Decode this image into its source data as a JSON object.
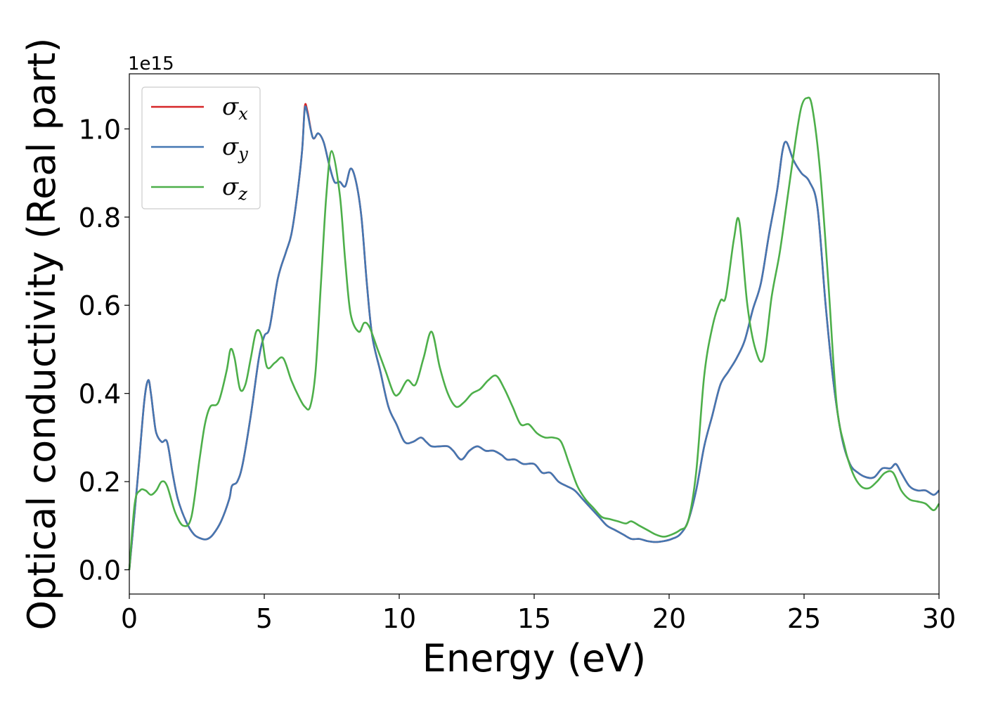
{
  "chart_data": {
    "type": "line",
    "title": "",
    "xlabel": "Energy (eV)",
    "ylabel": "Optical conductivity (Real part)",
    "y_offset_label": "1e15",
    "xlim": [
      0,
      30
    ],
    "ylim": [
      -0.055,
      1.125
    ],
    "xticks": [
      0,
      5,
      10,
      15,
      20,
      25,
      30
    ],
    "xtick_labels": [
      "0",
      "5",
      "10",
      "15",
      "20",
      "25",
      "30"
    ],
    "yticks": [
      0.0,
      0.2,
      0.4,
      0.6,
      0.8,
      1.0
    ],
    "ytick_labels": [
      "0.0",
      "0.2",
      "0.4",
      "0.6",
      "0.8",
      "1.0"
    ],
    "grid": false,
    "legend_position": "top-left",
    "series": [
      {
        "name": "σx",
        "legend_symbol": "σ",
        "legend_sub": "x",
        "color": "#d62728",
        "x": [
          0,
          0.3,
          0.55,
          0.7,
          0.8,
          0.9,
          1.0,
          1.2,
          1.4,
          1.6,
          1.8,
          2.1,
          2.4,
          2.7,
          2.9,
          3.1,
          3.4,
          3.7,
          3.8,
          4.0,
          4.2,
          4.5,
          4.8,
          5.0,
          5.2,
          5.5,
          5.8,
          6.0,
          6.2,
          6.4,
          6.5,
          6.6,
          6.8,
          7.0,
          7.2,
          7.4,
          7.6,
          7.8,
          8.0,
          8.2,
          8.4,
          8.6,
          8.8,
          9.0,
          9.3,
          9.6,
          9.9,
          10.2,
          10.5,
          10.8,
          11.0,
          11.2,
          11.5,
          11.8,
          12.0,
          12.3,
          12.6,
          12.9,
          13.2,
          13.5,
          13.8,
          14.0,
          14.3,
          14.6,
          15.0,
          15.3,
          15.6,
          15.9,
          16.2,
          16.5,
          16.8,
          17.1,
          17.4,
          17.7,
          18.0,
          18.3,
          18.6,
          18.9,
          19.2,
          19.5,
          19.8,
          20.1,
          20.4,
          20.7,
          21.0,
          21.3,
          21.6,
          21.9,
          22.2,
          22.5,
          22.8,
          23.1,
          23.4,
          23.7,
          24.0,
          24.2,
          24.35,
          24.6,
          24.9,
          25.2,
          25.5,
          25.8,
          26.1,
          26.4,
          26.7,
          27.0,
          27.3,
          27.6,
          27.9,
          28.2,
          28.4,
          28.6,
          28.9,
          29.2,
          29.5,
          29.8,
          30.0
        ],
        "y": [
          0.0,
          0.2,
          0.38,
          0.43,
          0.4,
          0.35,
          0.31,
          0.29,
          0.29,
          0.22,
          0.16,
          0.11,
          0.08,
          0.07,
          0.07,
          0.08,
          0.11,
          0.16,
          0.19,
          0.2,
          0.24,
          0.35,
          0.48,
          0.53,
          0.55,
          0.66,
          0.72,
          0.76,
          0.84,
          0.95,
          1.05,
          1.04,
          0.98,
          0.99,
          0.97,
          0.92,
          0.88,
          0.88,
          0.87,
          0.91,
          0.88,
          0.8,
          0.65,
          0.53,
          0.45,
          0.37,
          0.33,
          0.29,
          0.29,
          0.3,
          0.29,
          0.28,
          0.28,
          0.28,
          0.27,
          0.25,
          0.27,
          0.28,
          0.27,
          0.27,
          0.26,
          0.25,
          0.25,
          0.24,
          0.24,
          0.22,
          0.22,
          0.2,
          0.19,
          0.18,
          0.16,
          0.14,
          0.12,
          0.1,
          0.09,
          0.08,
          0.07,
          0.07,
          0.065,
          0.063,
          0.065,
          0.07,
          0.08,
          0.11,
          0.18,
          0.28,
          0.35,
          0.42,
          0.45,
          0.48,
          0.52,
          0.59,
          0.65,
          0.76,
          0.86,
          0.95,
          0.97,
          0.93,
          0.9,
          0.88,
          0.82,
          0.6,
          0.42,
          0.3,
          0.24,
          0.22,
          0.21,
          0.21,
          0.23,
          0.23,
          0.24,
          0.22,
          0.19,
          0.18,
          0.18,
          0.17,
          0.18
        ]
      },
      {
        "name": "σy",
        "legend_symbol": "σ",
        "legend_sub": "y",
        "color": "#4477b2",
        "x": [
          0,
          0.3,
          0.55,
          0.7,
          0.8,
          0.9,
          1.0,
          1.2,
          1.4,
          1.6,
          1.8,
          2.1,
          2.4,
          2.7,
          2.9,
          3.1,
          3.4,
          3.7,
          3.8,
          4.0,
          4.2,
          4.5,
          4.8,
          5.0,
          5.2,
          5.5,
          5.8,
          6.0,
          6.2,
          6.4,
          6.5,
          6.6,
          6.8,
          7.0,
          7.2,
          7.4,
          7.6,
          7.8,
          8.0,
          8.2,
          8.4,
          8.6,
          8.8,
          9.0,
          9.3,
          9.6,
          9.9,
          10.2,
          10.5,
          10.8,
          11.0,
          11.2,
          11.5,
          11.8,
          12.0,
          12.3,
          12.6,
          12.9,
          13.2,
          13.5,
          13.8,
          14.0,
          14.3,
          14.6,
          15.0,
          15.3,
          15.6,
          15.9,
          16.2,
          16.5,
          16.8,
          17.1,
          17.4,
          17.7,
          18.0,
          18.3,
          18.6,
          18.9,
          19.2,
          19.5,
          19.8,
          20.1,
          20.4,
          20.7,
          21.0,
          21.3,
          21.6,
          21.9,
          22.2,
          22.5,
          22.8,
          23.1,
          23.4,
          23.7,
          24.0,
          24.2,
          24.35,
          24.6,
          24.9,
          25.2,
          25.5,
          25.8,
          26.1,
          26.4,
          26.7,
          27.0,
          27.3,
          27.6,
          27.9,
          28.2,
          28.4,
          28.6,
          28.9,
          29.2,
          29.5,
          29.8,
          30.0
        ],
        "y": [
          0.0,
          0.2,
          0.38,
          0.43,
          0.4,
          0.35,
          0.31,
          0.29,
          0.29,
          0.22,
          0.16,
          0.11,
          0.08,
          0.07,
          0.07,
          0.08,
          0.11,
          0.16,
          0.19,
          0.2,
          0.24,
          0.35,
          0.48,
          0.53,
          0.55,
          0.66,
          0.72,
          0.76,
          0.84,
          0.95,
          1.045,
          1.035,
          0.98,
          0.99,
          0.97,
          0.92,
          0.88,
          0.88,
          0.87,
          0.91,
          0.88,
          0.8,
          0.65,
          0.53,
          0.45,
          0.37,
          0.33,
          0.29,
          0.29,
          0.3,
          0.29,
          0.28,
          0.28,
          0.28,
          0.27,
          0.25,
          0.27,
          0.28,
          0.27,
          0.27,
          0.26,
          0.25,
          0.25,
          0.24,
          0.24,
          0.22,
          0.22,
          0.2,
          0.19,
          0.18,
          0.16,
          0.14,
          0.12,
          0.1,
          0.09,
          0.08,
          0.07,
          0.07,
          0.065,
          0.063,
          0.065,
          0.07,
          0.08,
          0.11,
          0.18,
          0.28,
          0.35,
          0.42,
          0.45,
          0.48,
          0.52,
          0.59,
          0.65,
          0.76,
          0.86,
          0.95,
          0.97,
          0.93,
          0.9,
          0.88,
          0.82,
          0.6,
          0.42,
          0.3,
          0.24,
          0.22,
          0.21,
          0.21,
          0.23,
          0.23,
          0.24,
          0.22,
          0.19,
          0.18,
          0.18,
          0.17,
          0.18
        ]
      },
      {
        "name": "σz",
        "legend_symbol": "σ",
        "legend_sub": "z",
        "color": "#4daf4a",
        "x": [
          0,
          0.2,
          0.4,
          0.6,
          0.8,
          1.0,
          1.2,
          1.4,
          1.7,
          2.0,
          2.3,
          2.6,
          2.8,
          3.0,
          3.3,
          3.6,
          3.75,
          3.9,
          4.1,
          4.3,
          4.5,
          4.7,
          4.9,
          5.1,
          5.4,
          5.7,
          6.0,
          6.3,
          6.5,
          6.7,
          6.9,
          7.1,
          7.3,
          7.5,
          7.8,
          8.0,
          8.2,
          8.5,
          8.7,
          8.9,
          9.2,
          9.5,
          9.8,
          10.0,
          10.3,
          10.6,
          10.9,
          11.2,
          11.5,
          11.8,
          12.1,
          12.4,
          12.7,
          13.0,
          13.3,
          13.6,
          13.9,
          14.2,
          14.5,
          14.8,
          15.1,
          15.4,
          15.7,
          16.0,
          16.3,
          16.6,
          16.9,
          17.2,
          17.5,
          17.8,
          18.1,
          18.4,
          18.6,
          18.9,
          19.2,
          19.5,
          19.8,
          20.1,
          20.4,
          20.7,
          21.0,
          21.3,
          21.6,
          21.9,
          22.1,
          22.4,
          22.6,
          22.9,
          23.2,
          23.5,
          23.8,
          24.1,
          24.4,
          24.7,
          24.9,
          25.1,
          25.3,
          25.6,
          25.9,
          26.2,
          26.5,
          26.8,
          27.1,
          27.4,
          27.7,
          28.0,
          28.3,
          28.6,
          28.9,
          29.2,
          29.5,
          29.8,
          30.0
        ],
        "y": [
          0.0,
          0.15,
          0.18,
          0.18,
          0.17,
          0.18,
          0.2,
          0.19,
          0.13,
          0.1,
          0.12,
          0.25,
          0.33,
          0.37,
          0.38,
          0.45,
          0.5,
          0.48,
          0.41,
          0.42,
          0.48,
          0.54,
          0.53,
          0.46,
          0.47,
          0.48,
          0.43,
          0.39,
          0.37,
          0.37,
          0.45,
          0.65,
          0.85,
          0.95,
          0.85,
          0.7,
          0.58,
          0.54,
          0.56,
          0.55,
          0.5,
          0.45,
          0.4,
          0.4,
          0.43,
          0.42,
          0.48,
          0.54,
          0.46,
          0.4,
          0.37,
          0.38,
          0.4,
          0.41,
          0.43,
          0.44,
          0.41,
          0.37,
          0.33,
          0.33,
          0.31,
          0.3,
          0.3,
          0.29,
          0.24,
          0.19,
          0.16,
          0.14,
          0.12,
          0.115,
          0.11,
          0.105,
          0.11,
          0.1,
          0.09,
          0.08,
          0.075,
          0.08,
          0.09,
          0.11,
          0.22,
          0.44,
          0.55,
          0.61,
          0.62,
          0.75,
          0.79,
          0.6,
          0.5,
          0.48,
          0.62,
          0.72,
          0.85,
          0.98,
          1.05,
          1.07,
          1.05,
          0.9,
          0.65,
          0.38,
          0.28,
          0.22,
          0.19,
          0.185,
          0.2,
          0.22,
          0.22,
          0.18,
          0.16,
          0.155,
          0.15,
          0.135,
          0.15
        ]
      }
    ]
  }
}
